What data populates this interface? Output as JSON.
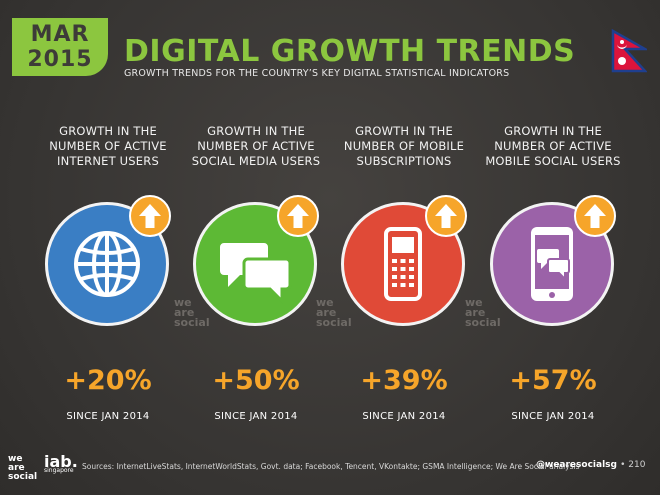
{
  "badge": {
    "month": "MAR",
    "year": "2015"
  },
  "title": "DIGITAL GROWTH TRENDS",
  "subtitle": "GROWTH TRENDS FOR THE COUNTRY’S KEY DIGITAL STATISTICAL INDICATORS",
  "watermark": [
    "we",
    "are",
    "social"
  ],
  "columns": [
    {
      "label_lines": [
        "GROWTH IN THE",
        "NUMBER OF ACTIVE",
        "INTERNET USERS"
      ],
      "icon": "globe-icon",
      "color": "#3a7ec4",
      "value": "+20%",
      "since": "SINCE JAN 2014"
    },
    {
      "label_lines": [
        "GROWTH IN THE",
        "NUMBER OF ACTIVE",
        "SOCIAL MEDIA USERS"
      ],
      "icon": "speech-bubbles-icon",
      "color": "#5db935",
      "value": "+50%",
      "since": "SINCE JAN 2014"
    },
    {
      "label_lines": [
        "GROWTH IN THE",
        "NUMBER OF MOBILE",
        "SUBSCRIPTIONS"
      ],
      "icon": "mobile-phone-icon",
      "color": "#e04a37",
      "value": "+39%",
      "since": "SINCE JAN 2014"
    },
    {
      "label_lines": [
        "GROWTH IN THE",
        "NUMBER OF ACTIVE",
        "MOBILE SOCIAL USERS"
      ],
      "icon": "smartphone-chat-icon",
      "color": "#9b62a8",
      "value": "+57%",
      "since": "SINCE JAN 2014"
    }
  ],
  "footer": {
    "logo1_lines": [
      "we",
      "are",
      "social"
    ],
    "logo2": "iab.",
    "logo2_sub": "singapore",
    "sources": "Sources: InternetLiveStats, InternetWorldStats, Govt. data; Facebook, Tencent, VKontakte; GSMA Intelligence; We Are Social analysis",
    "handle": "@wearesocialsg",
    "page": "• 210"
  },
  "colors": {
    "accent_green": "#8cc63f",
    "accent_orange": "#f6a52a",
    "background": "#3b3937"
  }
}
